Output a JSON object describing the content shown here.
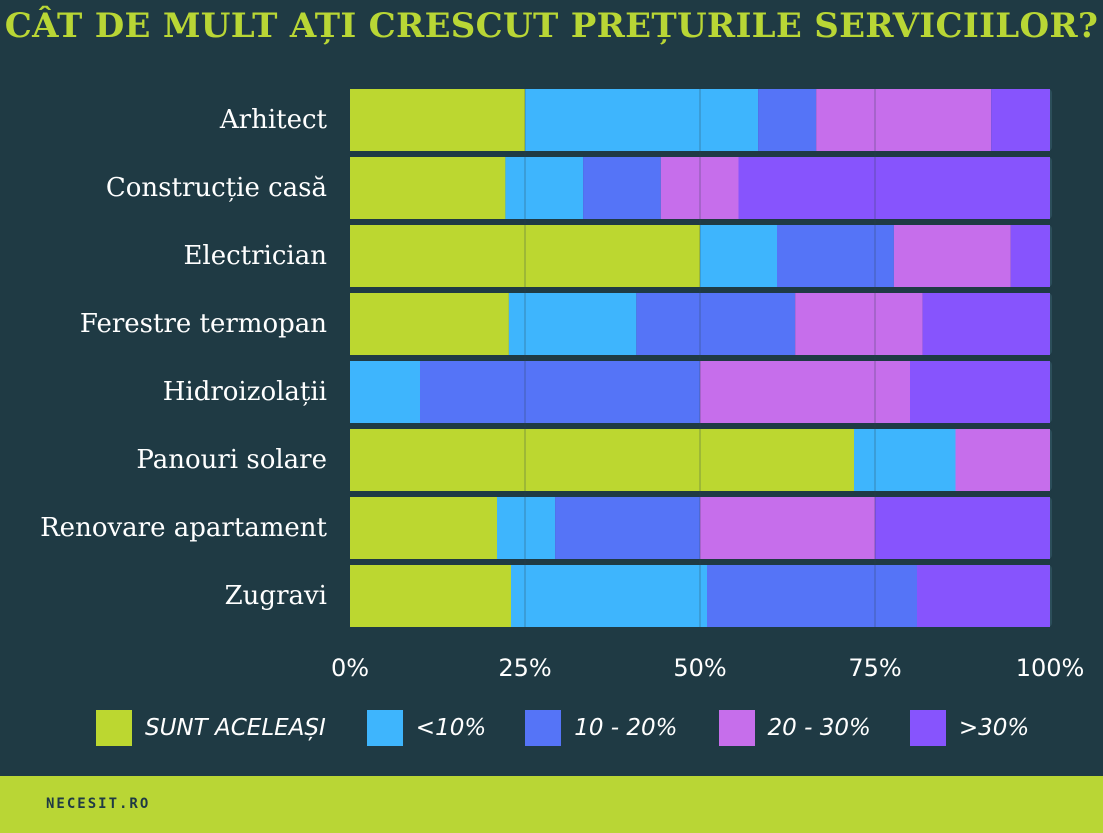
{
  "title": "CÂT DE MULT AȚI CRESCUT PREȚURILE SERVICIILOR?",
  "footer": {
    "brand": "NECESIT.RO"
  },
  "colors": {
    "background": "#1f3a44",
    "accent": "#b9d635",
    "track": "#2c4e5a"
  },
  "chart_data": {
    "type": "bar",
    "orientation": "horizontal",
    "stacked": true,
    "normalized": true,
    "categories": [
      "Arhitect",
      "Construcție casă",
      "Electrician",
      "Ferestre termopan",
      "Hidroizolații",
      "Panouri solare",
      "Renovare apartament",
      "Zugravi"
    ],
    "series": [
      {
        "name": "SUNT ACELEAȘI",
        "color": "#bcd730",
        "values": [
          25,
          22.2,
          50,
          22.7,
          0,
          72,
          21,
          23
        ]
      },
      {
        "name": "<10%",
        "color": "#3eb5fd",
        "values": [
          33.3,
          11.1,
          11,
          18.2,
          10,
          14.5,
          8.3,
          28
        ]
      },
      {
        "name": "10 - 20%",
        "color": "#5574f7",
        "values": [
          8.3,
          11.1,
          16.7,
          22.7,
          40,
          0,
          20.7,
          30
        ]
      },
      {
        "name": "20 - 30%",
        "color": "#c66eeb",
        "values": [
          25,
          11.1,
          16.7,
          18.2,
          30,
          13.5,
          25,
          0
        ]
      },
      {
        "name": ">30%",
        "color": "#8754fd",
        "values": [
          8.4,
          44.5,
          5.6,
          18.2,
          20,
          0,
          25,
          19
        ]
      }
    ],
    "xticks": [
      "0%",
      "25%",
      "50%",
      "75%",
      "100%"
    ],
    "xlim": [
      0,
      100
    ],
    "grid": true,
    "legend": "bottom"
  }
}
